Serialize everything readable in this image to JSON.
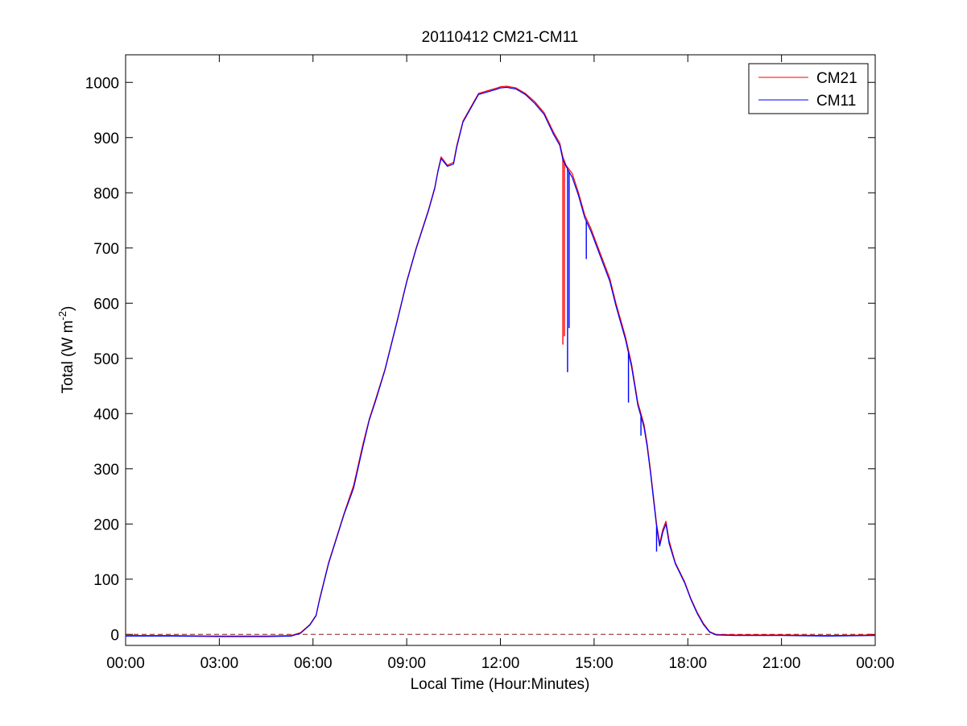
{
  "chart_data": {
    "type": "line",
    "title": "20110412 CM21-CM11",
    "xlabel": "Local Time (Hour:Minutes)",
    "ylabel": {
      "main": "Total (W m",
      "superscript": "-2",
      "close": ")"
    },
    "x_unit": "hours",
    "xlim": [
      0,
      24
    ],
    "ylim": [
      -20,
      1050
    ],
    "x_ticks": [
      0,
      3,
      6,
      9,
      12,
      15,
      18,
      21,
      24
    ],
    "x_tick_labels": [
      "00:00",
      "03:00",
      "06:00",
      "09:00",
      "12:00",
      "15:00",
      "18:00",
      "21:00",
      "00:00"
    ],
    "y_ticks": [
      0,
      100,
      200,
      300,
      400,
      500,
      600,
      700,
      800,
      900,
      1000
    ],
    "y_tick_labels": [
      "0",
      "100",
      "200",
      "300",
      "400",
      "500",
      "600",
      "700",
      "800",
      "900",
      "1000"
    ],
    "grid": false,
    "box": true,
    "legend": {
      "placement": "top-right"
    },
    "reference_line": {
      "y": 0,
      "style": "dashed",
      "color": "#8b1a1a"
    },
    "series": [
      {
        "name": "CM21",
        "color": "#ff0000",
        "points": [
          [
            0,
            -2
          ],
          [
            1.5,
            -2
          ],
          [
            3,
            -3
          ],
          [
            4.5,
            -3
          ],
          [
            5.3,
            -2
          ],
          [
            5.6,
            3
          ],
          [
            5.9,
            18
          ],
          [
            6.1,
            35
          ],
          [
            6.2,
            62
          ],
          [
            6.5,
            130
          ],
          [
            7,
            220
          ],
          [
            7.3,
            270
          ],
          [
            7.4,
            295
          ],
          [
            7.5,
            320
          ],
          [
            7.6,
            345
          ],
          [
            7.8,
            390
          ],
          [
            8,
            425
          ],
          [
            8.3,
            480
          ],
          [
            8.7,
            570
          ],
          [
            9,
            640
          ],
          [
            9.3,
            700
          ],
          [
            9.7,
            770
          ],
          [
            9.9,
            810
          ],
          [
            10.0,
            840
          ],
          [
            10.1,
            865
          ],
          [
            10.3,
            850
          ],
          [
            10.5,
            855
          ],
          [
            10.6,
            885
          ],
          [
            10.8,
            930
          ],
          [
            11.0,
            950
          ],
          [
            11.3,
            980
          ],
          [
            11.6,
            985
          ],
          [
            11.9,
            990
          ],
          [
            12.0,
            992
          ],
          [
            12.2,
            993
          ],
          [
            12.5,
            990
          ],
          [
            12.8,
            980
          ],
          [
            13.1,
            965
          ],
          [
            13.4,
            945
          ],
          [
            13.7,
            910
          ],
          [
            13.9,
            890
          ],
          [
            14.0,
            865
          ],
          [
            14.1,
            850
          ],
          [
            14.3,
            835
          ],
          [
            14.5,
            800
          ],
          [
            14.7,
            760
          ],
          [
            14.9,
            735
          ],
          [
            15.2,
            690
          ],
          [
            15.5,
            645
          ],
          [
            15.7,
            600
          ],
          [
            15.8,
            580
          ],
          [
            16.0,
            540
          ],
          [
            16.2,
            490
          ],
          [
            16.3,
            455
          ],
          [
            16.4,
            420
          ],
          [
            16.5,
            400
          ],
          [
            16.6,
            380
          ],
          [
            16.7,
            345
          ],
          [
            16.8,
            300
          ],
          [
            16.9,
            250
          ],
          [
            17.0,
            200
          ],
          [
            17.1,
            165
          ],
          [
            17.2,
            190
          ],
          [
            17.3,
            205
          ],
          [
            17.4,
            170
          ],
          [
            17.6,
            130
          ],
          [
            17.9,
            95
          ],
          [
            18.1,
            65
          ],
          [
            18.3,
            40
          ],
          [
            18.5,
            20
          ],
          [
            18.7,
            5
          ],
          [
            18.9,
            0
          ],
          [
            19.5,
            -1
          ],
          [
            21,
            -1
          ],
          [
            22.5,
            -2
          ],
          [
            24,
            -1
          ]
        ],
        "spikes": [
          [
            14.0,
            525
          ],
          [
            14.05,
            540
          ]
        ]
      },
      {
        "name": "CM11",
        "color": "#0000ff",
        "points": [
          [
            0,
            -3
          ],
          [
            1.5,
            -3
          ],
          [
            3,
            -4
          ],
          [
            4.5,
            -4
          ],
          [
            5.3,
            -3
          ],
          [
            5.6,
            2
          ],
          [
            5.9,
            17
          ],
          [
            6.1,
            34
          ],
          [
            6.2,
            60
          ],
          [
            6.5,
            128
          ],
          [
            7,
            218
          ],
          [
            7.3,
            265
          ],
          [
            7.4,
            290
          ],
          [
            7.5,
            315
          ],
          [
            7.6,
            340
          ],
          [
            7.8,
            388
          ],
          [
            8,
            422
          ],
          [
            8.3,
            478
          ],
          [
            8.7,
            568
          ],
          [
            9,
            638
          ],
          [
            9.3,
            698
          ],
          [
            9.7,
            768
          ],
          [
            9.9,
            808
          ],
          [
            10.0,
            838
          ],
          [
            10.1,
            862
          ],
          [
            10.3,
            848
          ],
          [
            10.5,
            852
          ],
          [
            10.6,
            882
          ],
          [
            10.8,
            928
          ],
          [
            11.0,
            948
          ],
          [
            11.3,
            978
          ],
          [
            11.6,
            983
          ],
          [
            11.9,
            988
          ],
          [
            12.0,
            990
          ],
          [
            12.2,
            991
          ],
          [
            12.5,
            988
          ],
          [
            12.8,
            978
          ],
          [
            13.1,
            962
          ],
          [
            13.4,
            942
          ],
          [
            13.7,
            906
          ],
          [
            13.9,
            886
          ],
          [
            14.0,
            860
          ],
          [
            14.1,
            848
          ],
          [
            14.3,
            828
          ],
          [
            14.5,
            795
          ],
          [
            14.7,
            755
          ],
          [
            14.9,
            730
          ],
          [
            15.2,
            685
          ],
          [
            15.5,
            640
          ],
          [
            15.7,
            595
          ],
          [
            15.8,
            575
          ],
          [
            16.0,
            535
          ],
          [
            16.2,
            485
          ],
          [
            16.3,
            450
          ],
          [
            16.4,
            415
          ],
          [
            16.5,
            395
          ],
          [
            16.6,
            375
          ],
          [
            16.7,
            340
          ],
          [
            16.8,
            295
          ],
          [
            16.9,
            245
          ],
          [
            17.0,
            195
          ],
          [
            17.1,
            160
          ],
          [
            17.2,
            185
          ],
          [
            17.3,
            200
          ],
          [
            17.4,
            165
          ],
          [
            17.6,
            128
          ],
          [
            17.9,
            93
          ],
          [
            18.1,
            63
          ],
          [
            18.3,
            38
          ],
          [
            18.5,
            18
          ],
          [
            18.7,
            4
          ],
          [
            18.9,
            -1
          ],
          [
            19.5,
            -2
          ],
          [
            21,
            -2
          ],
          [
            22.5,
            -3
          ],
          [
            24,
            -2
          ]
        ],
        "spikes": [
          [
            14.15,
            475
          ],
          [
            14.2,
            555
          ],
          [
            14.75,
            680
          ],
          [
            16.1,
            420
          ],
          [
            16.5,
            360
          ],
          [
            17.0,
            150
          ]
        ]
      }
    ]
  }
}
